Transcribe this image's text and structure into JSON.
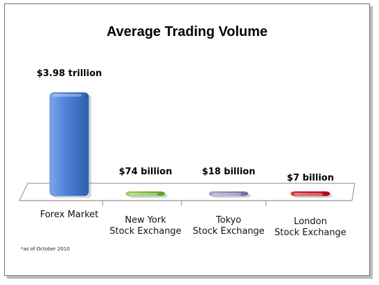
{
  "chart_data": {
    "type": "bar",
    "title": "Average Trading Volume",
    "unit": "USD",
    "categories": [
      [
        "Forex Market"
      ],
      [
        "New York",
        "Stock Exchange"
      ],
      [
        "Tokyo",
        "Stock Exchange"
      ],
      [
        "London",
        "Stock Exchange"
      ]
    ],
    "values": [
      3980,
      74,
      18,
      7
    ],
    "value_unit": "billion USD",
    "data_labels": [
      "$3.98 trillion",
      "$74 billion",
      "$18 billion",
      "$7 billion"
    ],
    "colors": [
      "#4a7fd6",
      "#7ab83a",
      "#8a7cb0",
      "#c0141a"
    ],
    "ylim": [
      0,
      4000
    ],
    "grid": false,
    "legend": "none",
    "footnote": "*as of October 2010"
  }
}
